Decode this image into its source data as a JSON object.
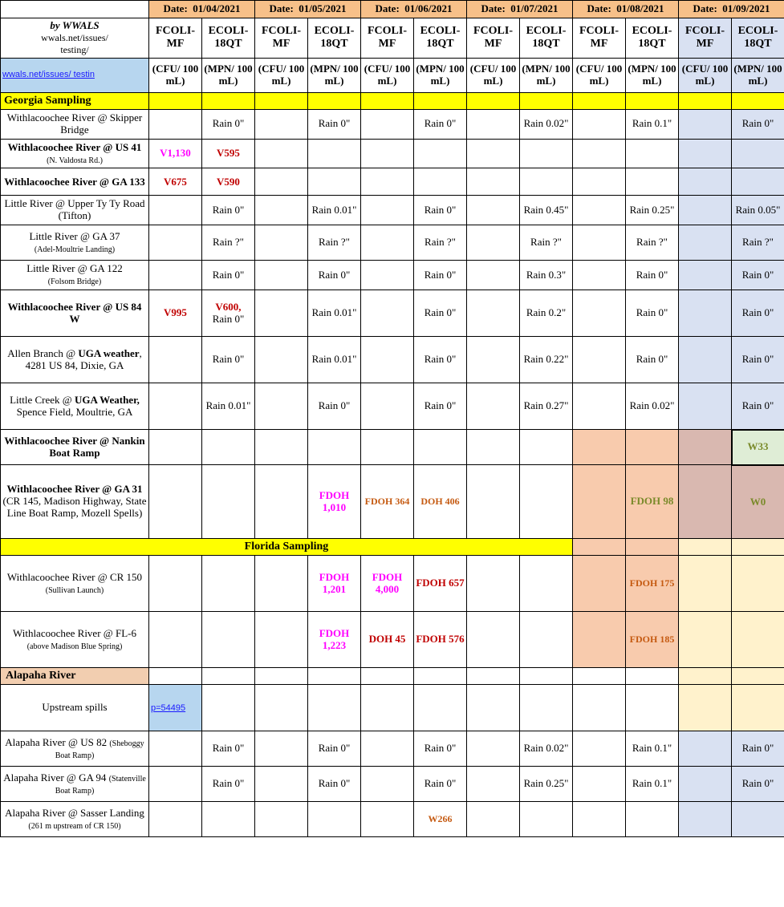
{
  "header": {
    "by": "by WWALS",
    "sub1": "wwals.net/issues/",
    "sub2": "testing/",
    "link": "wwals.net/issues/ testin",
    "dates": [
      "01/04/2021",
      "01/05/2021",
      "01/06/2021",
      "01/07/2021",
      "01/08/2021",
      "01/09/2021"
    ],
    "date_prefix": "Date:",
    "cols": [
      "FCOLI-MF",
      "ECOLI-18QT"
    ],
    "units": [
      "(CFU/ 100 mL)",
      "(MPN/ 100 mL)"
    ]
  },
  "sections": {
    "georgia": "Georgia Sampling",
    "florida": "Florida Sampling",
    "alapaha": "Alapaha River"
  },
  "rows": {
    "skipper": {
      "label": "Withlacoochee River @ Skipper Bridge",
      "cells": [
        "",
        "Rain 0\"",
        "",
        "Rain 0\"",
        "",
        "Rain 0\"",
        "",
        "Rain 0.02\"",
        "",
        "Rain 0.1\"",
        "",
        "Rain 0\""
      ]
    },
    "us41": {
      "label": "Withlacoochee River @ US 41",
      "sub": "(N. Valdosta Rd.)",
      "cells": [
        "V1,130",
        "V595",
        "",
        "",
        "",
        "",
        "",
        "",
        "",
        "",
        "",
        ""
      ]
    },
    "ga133": {
      "label": "Withlacoochee River @ GA 133",
      "cells": [
        "V675",
        "V590",
        "",
        "",
        "",
        "",
        "",
        "",
        "",
        "",
        "",
        ""
      ]
    },
    "tyty": {
      "label": "Little River @ Upper Ty Ty Road (Tifton)",
      "cells": [
        "",
        "Rain 0\"",
        "",
        "Rain 0.01\"",
        "",
        "Rain 0\"",
        "",
        "Rain 0.45\"",
        "",
        "Rain 0.25\"",
        "",
        "Rain 0.05\""
      ]
    },
    "ga37": {
      "label": "Little River @ GA 37",
      "sub": "(Adel-Moultrie Landing)",
      "cells": [
        "",
        "Rain ?\"",
        "",
        "Rain ?\"",
        "",
        "Rain ?\"",
        "",
        "Rain ?\"",
        "",
        "Rain ?\"",
        "",
        "Rain ?\""
      ]
    },
    "ga122": {
      "label": "Little River @ GA 122",
      "sub": "(Folsom Bridge)",
      "cells": [
        "",
        "Rain 0\"",
        "",
        "Rain 0\"",
        "",
        "Rain 0\"",
        "",
        "Rain 0.3\"",
        "",
        "Rain 0\"",
        "",
        "Rain 0\""
      ]
    },
    "us84w": {
      "label": "Withlacoochee River @ US 84 W",
      "cells": [
        "V995",
        "V600, Rain 0\"",
        "",
        "Rain 0.01\"",
        "",
        "Rain 0\"",
        "",
        "Rain 0.2\"",
        "",
        "Rain 0\"",
        "",
        "Rain 0\""
      ]
    },
    "allen": {
      "label_html": "Allen  Branch @ <b>UGA weather</b>, 4281 US 84, Dixie, GA",
      "cells": [
        "",
        "Rain 0\"",
        "",
        "Rain 0.01\"",
        "",
        "Rain 0\"",
        "",
        "Rain 0.22\"",
        "",
        "Rain 0\"",
        "",
        "Rain 0\""
      ]
    },
    "spence": {
      "label_html": "Little Creek @ <b>UGA Weather,</b> Spence Field, Moultrie, GA",
      "cells": [
        "",
        "Rain 0.01\"",
        "",
        "Rain 0\"",
        "",
        "Rain 0\"",
        "",
        "Rain 0.27\"",
        "",
        "Rain 0.02\"",
        "",
        "Rain 0\""
      ]
    },
    "nankin": {
      "label": "Withlacoochee River @ Nankin Boat Ramp",
      "cells": [
        "",
        "",
        "",
        "",
        "",
        "",
        "",
        "",
        "",
        "",
        "",
        "W33"
      ]
    },
    "ga31": {
      "label_html": "<b>Withlacoochee River @ GA 31</b> (CR 145, Madison Highway, State Line Boat Ramp, Mozell Spells)",
      "cells": [
        "",
        "",
        "",
        "FDOH 1,010",
        "FDOH 364",
        "DOH 406",
        "",
        "",
        "",
        "FDOH 98",
        "",
        "W0"
      ]
    },
    "cr150": {
      "label_html": "Withlacoochee River @ CR 150 <span class='small'>(Sullivan Launch)</span>",
      "cells": [
        "",
        "",
        "",
        "FDOH 1,201",
        "FDOH 4,000",
        "FDOH 657",
        "",
        "",
        "",
        "FDOH 175",
        "",
        ""
      ]
    },
    "fl6": {
      "label_html": "Withlacoochee River @ FL-6 <span class='small'>(above Madison Blue Spring)</span>",
      "cells": [
        "",
        "",
        "",
        "FDOH 1,223",
        "DOH 45",
        "FDOH 576",
        "",
        "",
        "",
        "FDOH 185",
        "",
        ""
      ]
    },
    "upspill": {
      "label": "Upstream spills",
      "link": "p=54495"
    },
    "us82": {
      "label_html": "Alapaha River @ US 82 <span class='small'>(Sheboggy Boat Ramp)</span>",
      "cells": [
        "",
        "Rain 0\"",
        "",
        "Rain 0\"",
        "",
        "Rain 0\"",
        "",
        "Rain 0.02\"",
        "",
        "Rain 0.1\"",
        "",
        "Rain 0\""
      ]
    },
    "ga94": {
      "label_html": "Alapaha River @ GA 94 <span class='small'>(Statenville Boat Ramp)</span>",
      "cells": [
        "",
        "Rain 0\"",
        "",
        "Rain 0\"",
        "",
        "Rain 0\"",
        "",
        "Rain 0.25\"",
        "",
        "Rain 0.1\"",
        "",
        "Rain 0\""
      ]
    },
    "sasser": {
      "label_html": "Alapaha River @ Sasser Landing <span class='small'>(261 m upstream of CR 150)</span>",
      "cells": [
        "",
        "",
        "",
        "",
        "",
        "W266",
        "",
        "",
        "",
        "",
        "",
        ""
      ]
    }
  },
  "colors": {
    "header_bg": "#f7c089",
    "yellow": "#ffff00",
    "blue": "#d9e1f2",
    "cream": "#fff2cc",
    "peach": "#f8cbad",
    "mauve": "#d9b8b0",
    "greenish": "#dfedd6",
    "red": "#c00000",
    "magenta": "#ff00ff",
    "orange": "#c55a11",
    "olive": "#7a8a2a",
    "link": "#b7d6ef"
  }
}
